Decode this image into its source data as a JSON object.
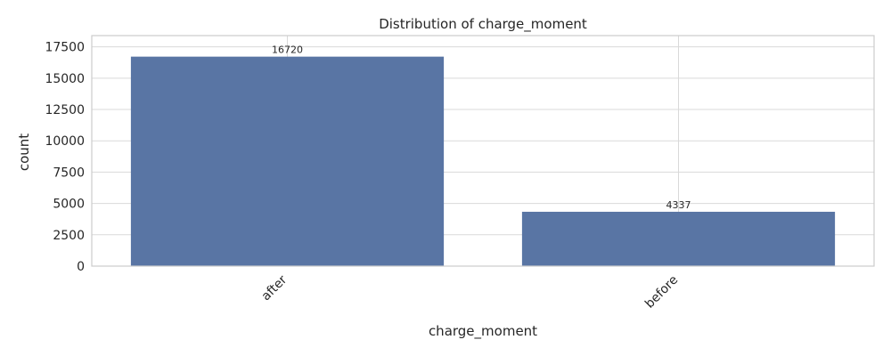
{
  "chart_data": {
    "type": "bar",
    "title": "Distribution of charge_moment",
    "xlabel": "charge_moment",
    "ylabel": "count",
    "categories": [
      "after",
      "before"
    ],
    "values": [
      16720,
      4337
    ],
    "data_labels": [
      "16720",
      "4337"
    ],
    "ylim": [
      0,
      18400
    ],
    "yticks": [
      0,
      2500,
      5000,
      7500,
      10000,
      12500,
      15000,
      17500
    ],
    "ytick_labels": [
      "0",
      "2500",
      "5000",
      "7500",
      "10000",
      "12500",
      "15000",
      "17500"
    ],
    "x_tick_rotation": 45,
    "grid": true,
    "legend": "none",
    "bar_color": "#5975a4"
  }
}
